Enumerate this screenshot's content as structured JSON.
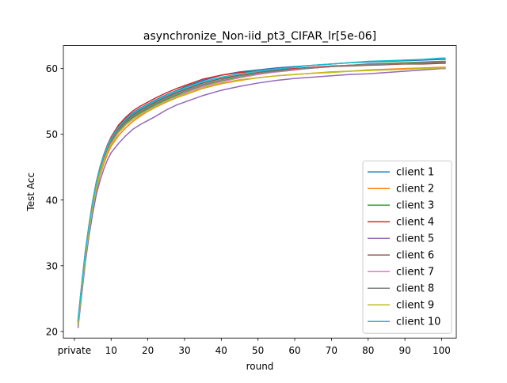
{
  "chart_data": {
    "type": "line",
    "title": "asynchronize_Non-iid_pt3_CIFAR_lr[5e-06]",
    "xlabel": "round",
    "ylabel": "Test Acc",
    "xlim": [
      -3,
      104
    ],
    "ylim": [
      19.0,
      63.5
    ],
    "x_ticks": [
      {
        "value": 0,
        "label": "private"
      },
      {
        "value": 10,
        "label": "10"
      },
      {
        "value": 20,
        "label": "20"
      },
      {
        "value": 30,
        "label": "30"
      },
      {
        "value": 40,
        "label": "40"
      },
      {
        "value": 50,
        "label": "50"
      },
      {
        "value": 60,
        "label": "60"
      },
      {
        "value": 70,
        "label": "70"
      },
      {
        "value": 80,
        "label": "80"
      },
      {
        "value": 90,
        "label": "90"
      },
      {
        "value": 100,
        "label": "100"
      }
    ],
    "y_ticks": [
      20,
      30,
      40,
      50,
      60
    ],
    "grid": false,
    "legend_position": "lower-right",
    "x": [
      1,
      2,
      3,
      4,
      5,
      6,
      7,
      8,
      9,
      10,
      12,
      14,
      16,
      18,
      20,
      22,
      25,
      28,
      30,
      35,
      40,
      45,
      50,
      55,
      60,
      65,
      70,
      75,
      80,
      85,
      90,
      95,
      100,
      101
    ],
    "series": [
      {
        "name": "client 1",
        "color": "#1f77b4",
        "values": [
          21.6,
          27.0,
          32.0,
          36.0,
          39.8,
          42.8,
          45.0,
          46.8,
          48.3,
          49.5,
          51.2,
          52.4,
          53.3,
          54.0,
          54.6,
          55.2,
          56.0,
          56.7,
          57.2,
          58.2,
          59.0,
          59.5,
          59.8,
          60.1,
          60.3,
          60.5,
          60.7,
          60.9,
          61.0,
          61.1,
          61.2,
          61.3,
          61.4,
          61.4
        ]
      },
      {
        "name": "client 2",
        "color": "#ff7f0e",
        "values": [
          21.0,
          26.2,
          31.2,
          35.2,
          38.8,
          41.5,
          43.8,
          45.5,
          47.0,
          48.2,
          49.8,
          51.0,
          52.0,
          52.8,
          53.5,
          54.1,
          54.9,
          55.6,
          56.0,
          57.0,
          57.7,
          58.2,
          58.6,
          58.9,
          59.1,
          59.3,
          59.5,
          59.6,
          59.8,
          59.9,
          60.0,
          60.1,
          60.2,
          60.2
        ]
      },
      {
        "name": "client 3",
        "color": "#2ca02c",
        "values": [
          21.4,
          26.8,
          31.8,
          35.8,
          39.4,
          42.2,
          44.5,
          46.2,
          47.6,
          48.8,
          50.5,
          51.7,
          52.6,
          53.3,
          53.9,
          54.5,
          55.3,
          56.0,
          56.4,
          57.4,
          58.1,
          58.7,
          59.2,
          59.5,
          59.8,
          60.1,
          60.3,
          60.5,
          60.7,
          60.8,
          60.9,
          61.0,
          61.1,
          61.1
        ]
      },
      {
        "name": "client 4",
        "color": "#d62728",
        "values": [
          21.8,
          27.2,
          32.3,
          36.3,
          39.9,
          42.8,
          45.1,
          46.9,
          48.4,
          49.6,
          51.4,
          52.6,
          53.6,
          54.3,
          54.9,
          55.5,
          56.3,
          57.0,
          57.4,
          58.4,
          59.0,
          59.4,
          59.6,
          59.8,
          60.0,
          60.2,
          60.4,
          60.5,
          60.6,
          60.7,
          60.8,
          60.9,
          60.9,
          61.0
        ]
      },
      {
        "name": "client 5",
        "color": "#9467bd",
        "values": [
          20.6,
          25.6,
          30.6,
          34.6,
          38.0,
          40.9,
          43.0,
          44.7,
          46.1,
          47.2,
          48.6,
          49.8,
          50.8,
          51.5,
          52.1,
          52.7,
          53.7,
          54.5,
          54.9,
          55.9,
          56.7,
          57.3,
          57.8,
          58.2,
          58.5,
          58.7,
          58.9,
          59.1,
          59.2,
          59.4,
          59.6,
          59.8,
          60.0,
          60.0
        ]
      },
      {
        "name": "client 6",
        "color": "#8c564b",
        "values": [
          21.5,
          27.0,
          32.0,
          36.0,
          39.6,
          42.5,
          44.8,
          46.6,
          48.0,
          49.2,
          50.9,
          52.1,
          53.0,
          53.7,
          54.3,
          54.9,
          55.7,
          56.4,
          56.8,
          57.8,
          58.5,
          59.0,
          59.4,
          59.7,
          59.9,
          60.1,
          60.3,
          60.4,
          60.5,
          60.6,
          60.7,
          60.7,
          60.8,
          60.8
        ]
      },
      {
        "name": "client 7",
        "color": "#e377c2",
        "values": [
          21.2,
          26.6,
          31.6,
          35.6,
          39.2,
          42.0,
          44.3,
          46.0,
          47.4,
          48.6,
          50.3,
          51.5,
          52.4,
          53.1,
          53.7,
          54.3,
          55.1,
          55.8,
          56.3,
          57.3,
          58.0,
          58.6,
          59.1,
          59.5,
          59.8,
          60.1,
          60.3,
          60.5,
          60.6,
          60.7,
          60.8,
          60.9,
          61.0,
          61.0
        ]
      },
      {
        "name": "client 8",
        "color": "#7f7f7f",
        "values": [
          21.3,
          26.8,
          31.8,
          35.8,
          39.4,
          42.3,
          44.6,
          46.4,
          47.8,
          49.0,
          50.7,
          51.9,
          52.8,
          53.5,
          54.1,
          54.7,
          55.5,
          56.2,
          56.6,
          57.6,
          58.3,
          58.9,
          59.3,
          59.6,
          59.9,
          60.1,
          60.3,
          60.5,
          60.6,
          60.7,
          60.8,
          60.9,
          61.0,
          61.0
        ]
      },
      {
        "name": "client 9",
        "color": "#bcbd22",
        "values": [
          21.1,
          26.4,
          31.4,
          35.4,
          39.0,
          41.8,
          44.1,
          45.9,
          47.3,
          48.5,
          50.2,
          51.4,
          52.3,
          53.0,
          53.6,
          54.2,
          55.0,
          55.7,
          56.1,
          57.1,
          57.8,
          58.3,
          58.6,
          58.9,
          59.1,
          59.3,
          59.4,
          59.6,
          59.7,
          59.8,
          59.9,
          60.0,
          60.1,
          60.1
        ]
      },
      {
        "name": "client 10",
        "color": "#17becf",
        "values": [
          21.7,
          27.1,
          32.2,
          36.2,
          39.8,
          42.7,
          45.0,
          46.8,
          48.2,
          49.4,
          51.1,
          52.3,
          53.2,
          53.9,
          54.5,
          55.1,
          55.9,
          56.6,
          57.0,
          58.0,
          58.7,
          59.2,
          59.6,
          59.9,
          60.2,
          60.5,
          60.7,
          60.9,
          61.1,
          61.2,
          61.3,
          61.4,
          61.6,
          61.6
        ]
      }
    ]
  }
}
